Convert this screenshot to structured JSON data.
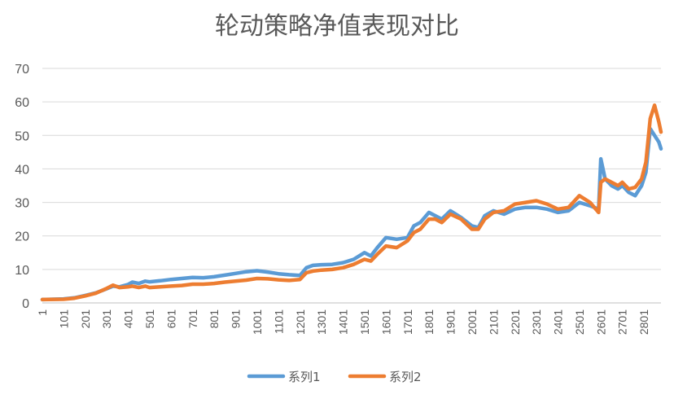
{
  "chart_data": {
    "type": "line",
    "title": "轮动策略净值表现对比",
    "xlabel": "",
    "ylabel": "",
    "ylim": [
      0,
      70
    ],
    "yticks": [
      0,
      10,
      20,
      30,
      40,
      50,
      60,
      70
    ],
    "xlim": [
      1,
      2880
    ],
    "xticks": [
      1,
      101,
      201,
      301,
      401,
      501,
      601,
      701,
      801,
      901,
      1001,
      1101,
      1201,
      1301,
      1401,
      1501,
      1601,
      1701,
      1801,
      1901,
      2001,
      2101,
      2201,
      2301,
      2401,
      2501,
      2601,
      2701,
      2801
    ],
    "grid": true,
    "legend": "bottom",
    "series": [
      {
        "name": "系列1",
        "color": "#5B9BD5",
        "x": [
          1,
          100,
          150,
          200,
          250,
          300,
          330,
          360,
          400,
          420,
          450,
          480,
          500,
          550,
          600,
          650,
          700,
          750,
          800,
          850,
          900,
          950,
          1000,
          1050,
          1100,
          1150,
          1200,
          1230,
          1260,
          1300,
          1350,
          1400,
          1450,
          1500,
          1530,
          1560,
          1600,
          1650,
          1700,
          1730,
          1760,
          1800,
          1830,
          1860,
          1900,
          1950,
          2000,
          2030,
          2060,
          2100,
          2150,
          2200,
          2250,
          2300,
          2350,
          2400,
          2450,
          2500,
          2550,
          2590,
          2600,
          2620,
          2650,
          2680,
          2700,
          2730,
          2760,
          2790,
          2810,
          2830,
          2850,
          2870,
          2880
        ],
        "values": [
          1.0,
          1.2,
          1.5,
          2.2,
          3.0,
          4.2,
          5.0,
          4.8,
          5.5,
          6.2,
          5.8,
          6.5,
          6.3,
          6.6,
          7.0,
          7.3,
          7.6,
          7.5,
          7.8,
          8.3,
          8.8,
          9.3,
          9.6,
          9.2,
          8.7,
          8.4,
          8.2,
          10.5,
          11.2,
          11.4,
          11.5,
          12.0,
          13.0,
          15.0,
          14.0,
          16.5,
          19.5,
          19.0,
          19.5,
          23.0,
          24.0,
          27.0,
          26.0,
          25.0,
          27.5,
          25.5,
          23.0,
          22.5,
          26.0,
          27.5,
          26.5,
          28.0,
          28.5,
          28.5,
          28.0,
          27.0,
          27.5,
          30.0,
          29.0,
          28.0,
          43.0,
          37.0,
          35.0,
          34.0,
          35.0,
          33.0,
          32.0,
          35.0,
          39.0,
          52.0,
          50.0,
          48.0,
          46.0
        ]
      },
      {
        "name": "系列2",
        "color": "#ED7D31",
        "x": [
          1,
          100,
          150,
          200,
          250,
          300,
          330,
          360,
          400,
          420,
          450,
          480,
          500,
          550,
          600,
          650,
          700,
          750,
          800,
          850,
          900,
          950,
          1000,
          1050,
          1100,
          1150,
          1200,
          1230,
          1260,
          1300,
          1350,
          1400,
          1450,
          1500,
          1530,
          1560,
          1600,
          1650,
          1700,
          1730,
          1760,
          1800,
          1830,
          1860,
          1900,
          1950,
          2000,
          2030,
          2060,
          2100,
          2150,
          2200,
          2250,
          2300,
          2350,
          2400,
          2450,
          2500,
          2550,
          2590,
          2600,
          2620,
          2650,
          2680,
          2700,
          2730,
          2760,
          2790,
          2810,
          2830,
          2850,
          2870,
          2880
        ],
        "values": [
          1.0,
          1.1,
          1.4,
          2.1,
          2.9,
          4.3,
          5.3,
          4.6,
          4.8,
          5.0,
          4.6,
          5.0,
          4.6,
          4.8,
          5.0,
          5.2,
          5.6,
          5.6,
          5.8,
          6.2,
          6.5,
          6.8,
          7.3,
          7.2,
          6.9,
          6.7,
          7.0,
          9.0,
          9.5,
          9.8,
          10.0,
          10.5,
          11.5,
          13.0,
          12.5,
          14.5,
          17.0,
          16.5,
          18.5,
          21.0,
          22.0,
          25.0,
          25.0,
          24.0,
          26.5,
          25.0,
          22.0,
          22.0,
          25.0,
          27.0,
          27.5,
          29.5,
          30.0,
          30.5,
          29.5,
          28.0,
          28.5,
          32.0,
          30.0,
          27.0,
          36.0,
          37.0,
          36.0,
          35.0,
          36.0,
          34.0,
          34.5,
          37.0,
          42.0,
          55.0,
          59.0,
          54.0,
          51.0
        ]
      }
    ]
  }
}
